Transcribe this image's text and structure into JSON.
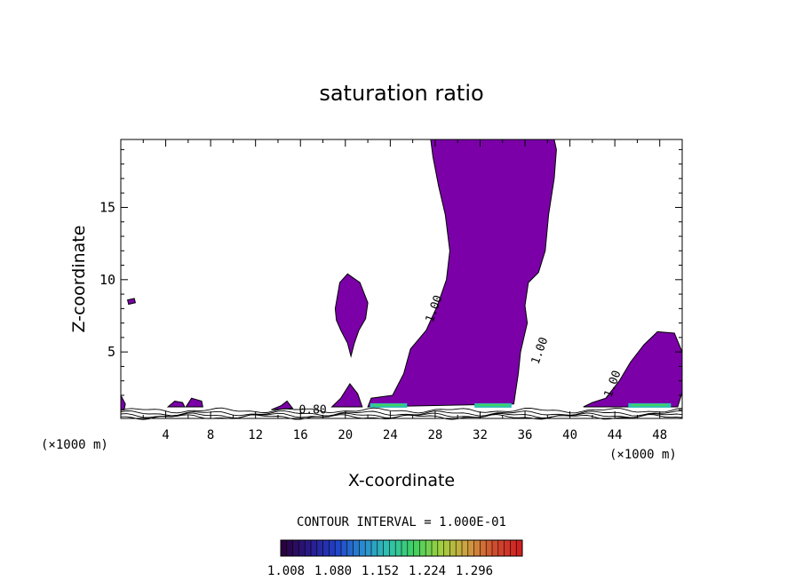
{
  "chart_data": {
    "type": "contour",
    "title": "saturation ratio",
    "xlabel": "X-coordinate",
    "ylabel": "Z-coordinate",
    "x_unit_left": "(×1000 m)",
    "x_unit_right": "(×1000 m)",
    "xlim": [
      0,
      50
    ],
    "ylim": [
      0.4,
      19.7
    ],
    "x_ticks": [
      4,
      8,
      12,
      16,
      20,
      24,
      28,
      32,
      36,
      40,
      44,
      48
    ],
    "y_ticks": [
      5,
      10,
      15
    ],
    "contour_interval_text": "CONTOUR INTERVAL = 1.000E-01",
    "contour_labels": [
      {
        "text": "1.00",
        "x": 28.2,
        "y": 7.9
      },
      {
        "text": "1.00",
        "x": 37.6,
        "y": 5.0
      },
      {
        "text": "1.00",
        "x": 44.1,
        "y": 2.7
      },
      {
        "text": "0.80",
        "x": 17.1,
        "y": 0.75
      }
    ],
    "fill_color": "#7b00a8",
    "colorbar": {
      "tick_labels": [
        "1.008",
        "1.080",
        "1.152",
        "1.224",
        "1.296"
      ],
      "colors": [
        "#2a0040",
        "#2a1a8a",
        "#2040c8",
        "#2a8ad0",
        "#30c0b0",
        "#40d060",
        "#a0d040",
        "#d0a040",
        "#d05030",
        "#d02020"
      ]
    },
    "regions": [
      {
        "name": "main-plume",
        "points": [
          [
            27.6,
            19.7
          ],
          [
            38.6,
            19.7
          ],
          [
            38.8,
            19.0
          ],
          [
            38.6,
            17.0
          ],
          [
            38.1,
            14.5
          ],
          [
            37.8,
            12.0
          ],
          [
            37.2,
            10.5
          ],
          [
            36.3,
            9.8
          ],
          [
            36.0,
            8.2
          ],
          [
            36.2,
            7.0
          ],
          [
            35.6,
            5.0
          ],
          [
            35.4,
            3.5
          ],
          [
            35.0,
            1.4
          ],
          [
            22.0,
            1.2
          ],
          [
            22.3,
            1.8
          ],
          [
            24.2,
            2.0
          ],
          [
            25.2,
            3.5
          ],
          [
            25.8,
            5.2
          ],
          [
            27.2,
            6.5
          ],
          [
            28.2,
            8.2
          ],
          [
            29.0,
            10.0
          ],
          [
            29.3,
            12.0
          ],
          [
            28.9,
            14.5
          ],
          [
            28.3,
            16.5
          ],
          [
            27.8,
            18.5
          ]
        ]
      },
      {
        "name": "blob-mid",
        "points": [
          [
            19.1,
            8.0
          ],
          [
            19.5,
            9.8
          ],
          [
            20.2,
            10.4
          ],
          [
            21.3,
            9.8
          ],
          [
            22.0,
            8.4
          ],
          [
            21.8,
            7.3
          ],
          [
            21.2,
            6.5
          ],
          [
            20.8,
            5.6
          ],
          [
            20.5,
            4.7
          ],
          [
            20.2,
            5.6
          ],
          [
            19.6,
            6.5
          ],
          [
            19.2,
            7.2
          ]
        ]
      },
      {
        "name": "right-plume",
        "points": [
          [
            41.2,
            1.2
          ],
          [
            49.6,
            1.2
          ],
          [
            50.0,
            2.2
          ],
          [
            50.0,
            5.0
          ],
          [
            49.3,
            6.3
          ],
          [
            47.8,
            6.4
          ],
          [
            46.6,
            5.5
          ],
          [
            45.4,
            4.3
          ],
          [
            44.4,
            3.0
          ],
          [
            43.2,
            1.8
          ],
          [
            42.0,
            1.5
          ]
        ]
      },
      {
        "name": "left-edge",
        "points": [
          [
            0.0,
            1.0
          ],
          [
            0.0,
            2.0
          ],
          [
            0.4,
            1.4
          ],
          [
            0.3,
            1.0
          ]
        ]
      },
      {
        "name": "small-blob-8",
        "points": [
          [
            0.6,
            8.6
          ],
          [
            1.2,
            8.7
          ],
          [
            1.3,
            8.4
          ],
          [
            0.7,
            8.3
          ]
        ]
      },
      {
        "name": "low-blob-5",
        "points": [
          [
            4.2,
            1.2
          ],
          [
            4.8,
            1.6
          ],
          [
            5.5,
            1.5
          ],
          [
            5.7,
            1.2
          ]
        ]
      },
      {
        "name": "low-blob-7",
        "points": [
          [
            5.8,
            1.2
          ],
          [
            6.3,
            1.8
          ],
          [
            7.2,
            1.6
          ],
          [
            7.3,
            1.2
          ]
        ]
      },
      {
        "name": "low-blob-14",
        "points": [
          [
            13.4,
            1.0
          ],
          [
            14.3,
            1.3
          ],
          [
            14.8,
            1.6
          ],
          [
            15.3,
            1.1
          ]
        ]
      },
      {
        "name": "low-blob-20",
        "points": [
          [
            18.8,
            1.2
          ],
          [
            19.6,
            1.8
          ],
          [
            20.4,
            2.8
          ],
          [
            21.1,
            2.1
          ],
          [
            21.5,
            1.2
          ]
        ]
      }
    ]
  }
}
